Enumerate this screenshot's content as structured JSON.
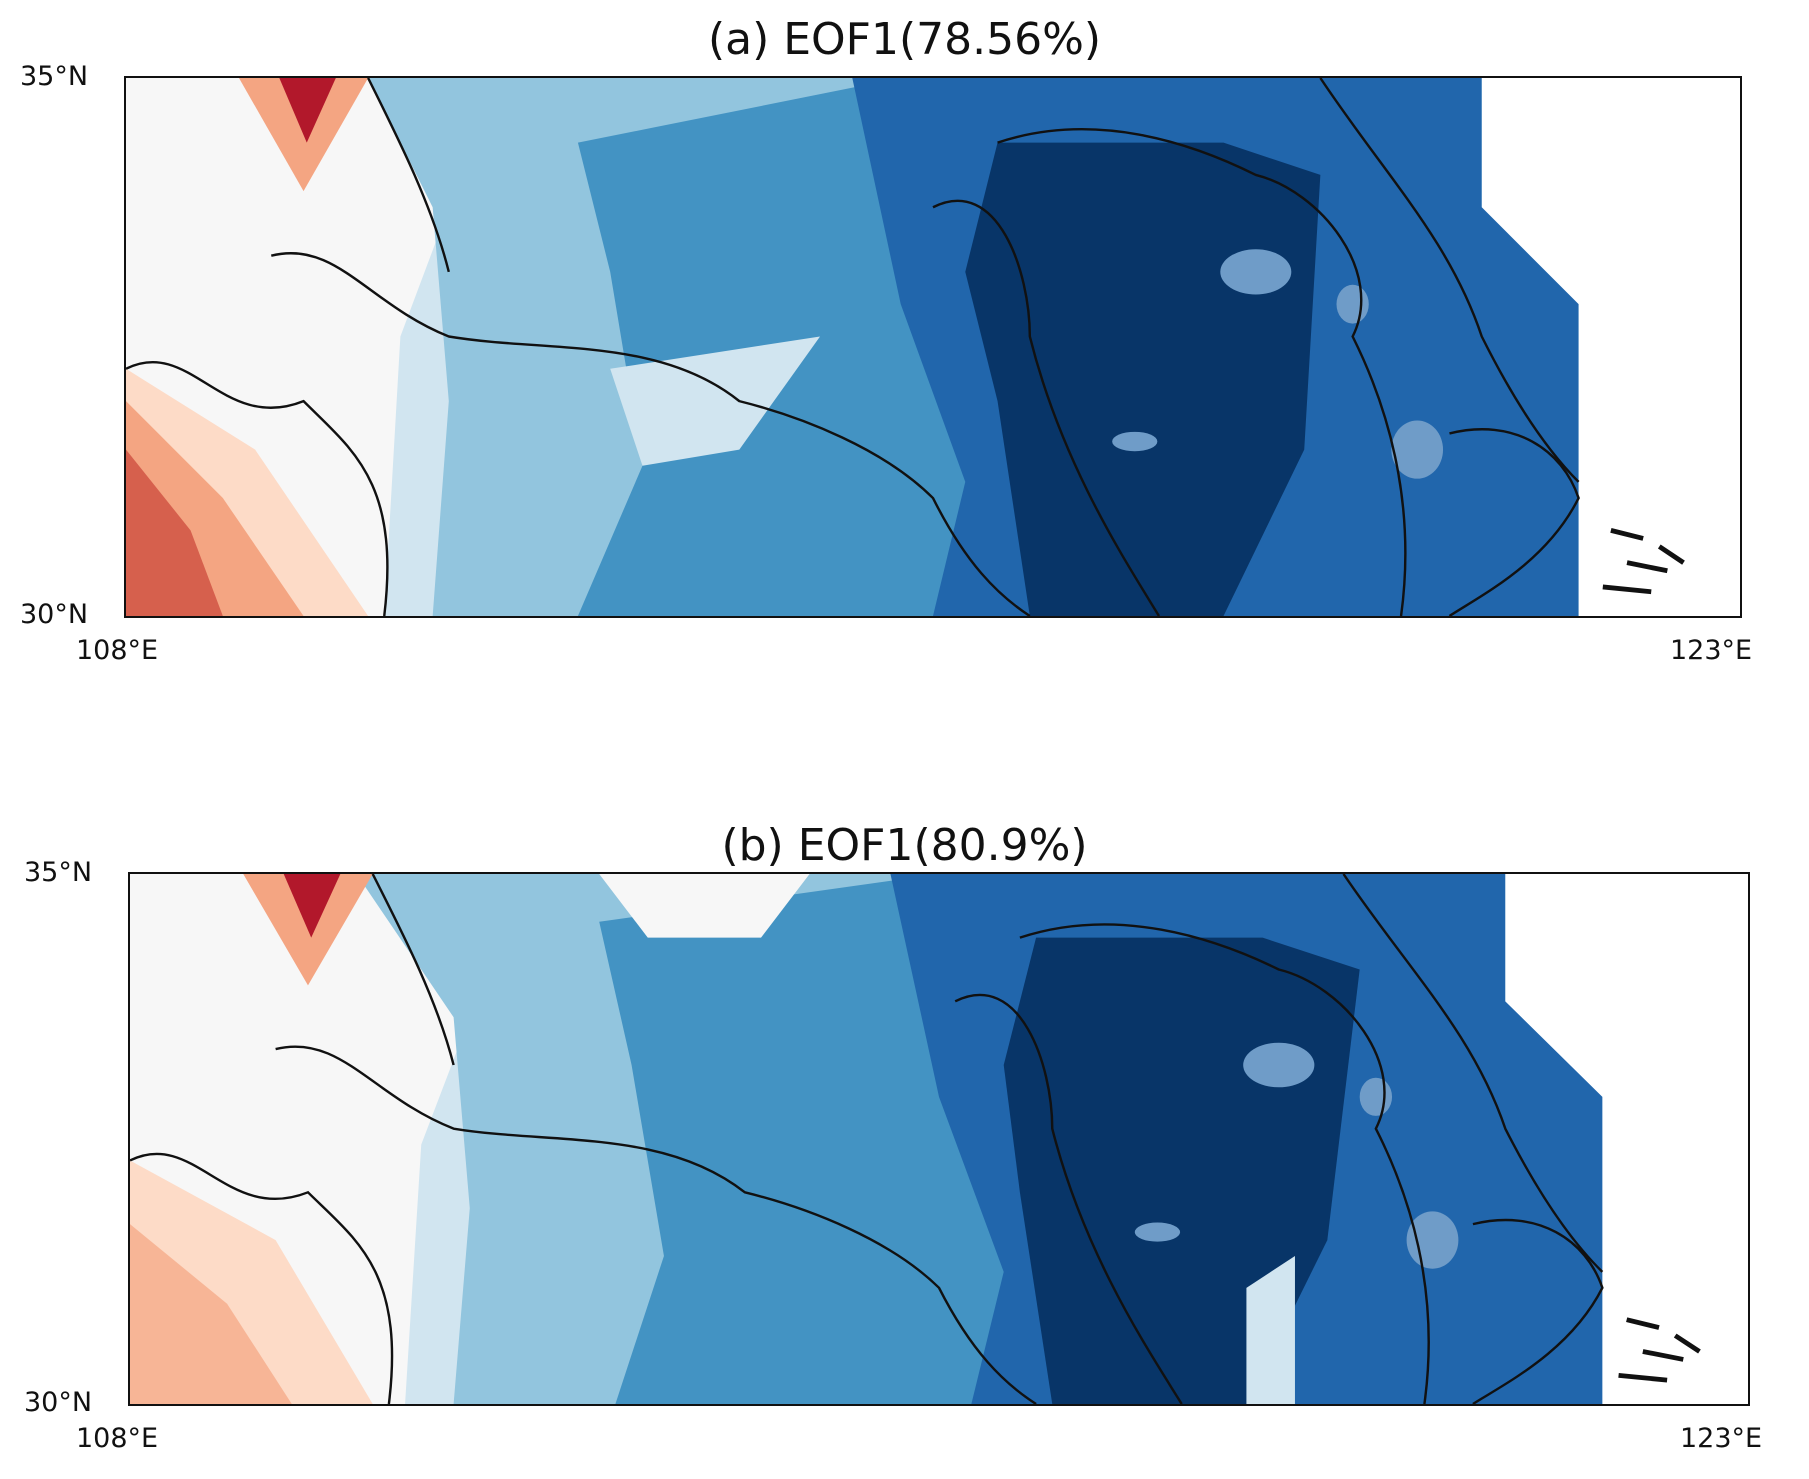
{
  "figure": {
    "panels": [
      {
        "title": "(a)  EOF1(78.56%)",
        "lat_top": "35°N",
        "lat_bottom": "30°N",
        "lon_left": "108°E",
        "lon_right": "123°E"
      },
      {
        "title": "(b)  EOF1(80.9%)",
        "lat_top": "35°N",
        "lat_bottom": "30°N",
        "lon_left": "108°E",
        "lon_right": "123°E"
      }
    ]
  },
  "colors": {
    "deep_red": "#b2182b",
    "red": "#d6604d",
    "light_red": "#f4a582",
    "pale_red": "#fddbc7",
    "near_white": "#f7f7f7",
    "pale_blue": "#d1e5f0",
    "light_blue": "#92c5de",
    "mid_blue": "#4393c3",
    "blue": "#2166ac",
    "deep_blue": "#053061",
    "boundary": "#111111",
    "lake": "#6f9cc8"
  }
}
